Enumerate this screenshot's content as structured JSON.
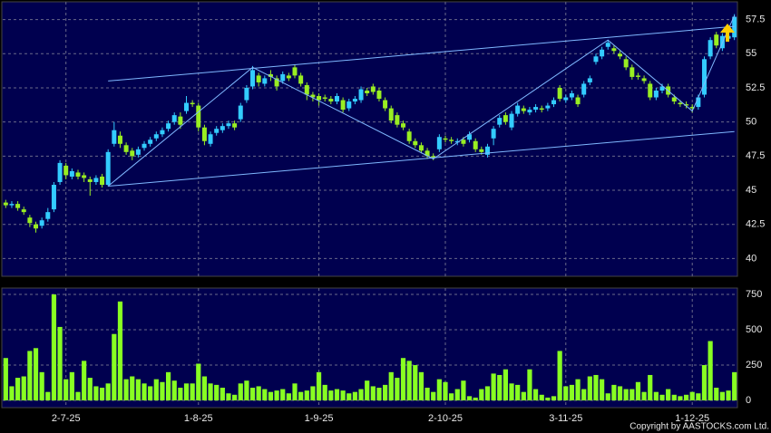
{
  "chart_data": {
    "type": "candlestick",
    "categories": [
      null,
      null,
      null,
      null,
      null,
      null,
      null,
      null,
      null,
      null,
      "2-7-25",
      null,
      null,
      null,
      null,
      null,
      null,
      null,
      null,
      null,
      null,
      null,
      null,
      null,
      null,
      null,
      null,
      null,
      null,
      null,
      null,
      null,
      "1-8-25",
      null,
      null,
      null,
      null,
      null,
      null,
      null,
      null,
      null,
      null,
      null,
      null,
      null,
      null,
      null,
      null,
      null,
      null,
      null,
      "1-9-25",
      null,
      null,
      null,
      null,
      null,
      null,
      null,
      null,
      null,
      null,
      null,
      null,
      null,
      null,
      null,
      null,
      null,
      null,
      null,
      null,
      "2-10-25",
      null,
      null,
      null,
      null,
      null,
      null,
      null,
      null,
      null,
      null,
      null,
      null,
      null,
      null,
      null,
      null,
      null,
      null,
      null,
      "3-11-25",
      null,
      null,
      null,
      null,
      null,
      null,
      null,
      null,
      null,
      null,
      null,
      null,
      null,
      null,
      null,
      null,
      null,
      null,
      null,
      null,
      "1-12-25",
      null,
      null,
      null,
      null,
      null,
      null,
      null
    ],
    "open": [
      44.1,
      43.9,
      44.0,
      43.6,
      43.0,
      42.5,
      42.4,
      42.9,
      43.6,
      45.6,
      46.8,
      46.0,
      46.3,
      46.1,
      45.8,
      45.6,
      46.0,
      45.4,
      48.4,
      49.0,
      48.3,
      47.9,
      47.6,
      48.1,
      48.4,
      48.8,
      49.1,
      49.5,
      50.0,
      50.4,
      50.8,
      51.4,
      51.2,
      49.6,
      48.4,
      49.2,
      49.4,
      49.7,
      49.9,
      50.2,
      51.6,
      52.6,
      53.4,
      52.8,
      53.5,
      53.2,
      53.0,
      53.4,
      54.0,
      53.4,
      52.7,
      52.0,
      51.9,
      51.8,
      51.7,
      51.5,
      51.6,
      51.0,
      51.5,
      51.6,
      52.3,
      52.6,
      52.3,
      51.6,
      51.0,
      50.5,
      49.9,
      49.3,
      48.6,
      48.3,
      47.9,
      47.5,
      48.0,
      48.8,
      48.7,
      48.5,
      48.7,
      48.7,
      48.6,
      48.0,
      47.6,
      48.8,
      49.8,
      50.5,
      49.6,
      50.6,
      51.0,
      50.7,
      50.9,
      51.0,
      51.0,
      51.3,
      52.5,
      51.6,
      51.8,
      51.8,
      52.0,
      52.9,
      54.4,
      54.8,
      55.5,
      55.4,
      55.0,
      54.6,
      54.0,
      53.4,
      53.2,
      52.8,
      51.8,
      52.3,
      52.6,
      51.8,
      51.4,
      51.3,
      51.1,
      51.1,
      52.0,
      54.8,
      56.4,
      55.4,
      56.1,
      56.2
    ],
    "high": [
      44.3,
      44.2,
      44.2,
      43.8,
      43.2,
      42.7,
      43.0,
      43.7,
      45.6,
      47.2,
      47.0,
      46.6,
      46.5,
      46.3,
      46.0,
      46.1,
      46.2,
      48.0,
      50.0,
      49.3,
      48.5,
      48.1,
      48.2,
      48.6,
      48.9,
      49.3,
      49.6,
      50.1,
      50.7,
      50.7,
      51.9,
      51.6,
      51.4,
      49.8,
      49.3,
      49.7,
      49.9,
      50.1,
      50.1,
      51.4,
      52.7,
      54.1,
      53.6,
      53.4,
      53.8,
      53.4,
      53.7,
      53.6,
      54.2,
      53.6,
      52.9,
      52.2,
      52.1,
      52.0,
      51.9,
      52.1,
      51.8,
      51.7,
      51.9,
      52.6,
      52.5,
      52.8,
      52.5,
      51.8,
      51.2,
      50.7,
      50.1,
      49.5,
      48.8,
      48.5,
      48.1,
      47.7,
      49.1,
      49.0,
      48.9,
      48.8,
      48.9,
      49.3,
      48.8,
      48.2,
      48.4,
      49.7,
      50.5,
      50.7,
      50.8,
      51.4,
      51.2,
      51.1,
      51.3,
      51.2,
      51.4,
      51.8,
      52.7,
      52.0,
      52.3,
      52.0,
      53.0,
      53.4,
      55.0,
      55.5,
      56.0,
      55.6,
      55.2,
      54.8,
      54.2,
      53.6,
      53.4,
      53.0,
      52.5,
      52.8,
      52.8,
      52.0,
      51.6,
      51.5,
      51.3,
      52.0,
      54.8,
      56.2,
      56.6,
      56.5,
      56.5,
      57.9
    ],
    "low": [
      43.7,
      43.7,
      43.5,
      43.2,
      42.3,
      41.9,
      42.2,
      42.7,
      43.4,
      45.4,
      45.8,
      45.8,
      45.8,
      45.6,
      44.6,
      45.4,
      45.2,
      45.3,
      48.2,
      48.1,
      47.6,
      47.2,
      47.4,
      47.9,
      48.2,
      48.6,
      48.9,
      49.3,
      49.8,
      49.5,
      50.6,
      51.1,
      49.3,
      48.3,
      48.2,
      49.0,
      49.2,
      49.5,
      49.4,
      50.0,
      51.4,
      52.4,
      52.6,
      52.6,
      53.0,
      52.3,
      52.8,
      53.0,
      53.2,
      52.6,
      51.6,
      51.5,
      51.2,
      51.5,
      51.3,
      51.3,
      50.7,
      50.8,
      51.3,
      51.4,
      51.9,
      52.0,
      51.5,
      50.8,
      49.9,
      49.6,
      49.4,
      48.4,
      48.1,
      47.7,
      47.3,
      47.2,
      47.8,
      48.5,
      48.4,
      48.3,
      48.2,
      48.5,
      47.8,
      47.6,
      47.4,
      48.3,
      49.6,
      49.8,
      49.4,
      50.4,
      50.6,
      50.5,
      50.7,
      50.7,
      50.8,
      51.1,
      51.5,
      51.4,
      51.6,
      51.1,
      51.8,
      52.7,
      54.2,
      54.6,
      55.3,
      55.0,
      54.6,
      53.8,
      53.1,
      53.1,
      52.8,
      51.6,
      51.6,
      52.1,
      51.8,
      51.3,
      51.1,
      51.0,
      50.7,
      50.9,
      51.8,
      54.6,
      55.4,
      55.2,
      55.9,
      56.0
    ],
    "close": [
      43.9,
      44.0,
      43.7,
      43.4,
      42.6,
      42.2,
      42.8,
      43.4,
      45.4,
      47.0,
      46.1,
      46.4,
      46.0,
      45.9,
      45.6,
      45.9,
      45.4,
      47.8,
      49.4,
      48.4,
      47.8,
      47.5,
      48.0,
      48.4,
      48.7,
      49.1,
      49.4,
      49.9,
      50.5,
      49.8,
      51.4,
      51.3,
      49.6,
      48.6,
      49.1,
      49.5,
      49.7,
      49.9,
      49.6,
      51.2,
      52.5,
      53.8,
      52.9,
      53.2,
      53.3,
      52.6,
      53.5,
      53.2,
      53.4,
      52.8,
      52.0,
      51.8,
      51.6,
      51.7,
      51.5,
      51.9,
      50.9,
      51.5,
      51.7,
      52.4,
      52.1,
      52.2,
      51.7,
      51.0,
      50.1,
      49.8,
      49.6,
      48.6,
      48.3,
      47.9,
      47.5,
      47.4,
      48.9,
      48.7,
      48.6,
      48.6,
      48.4,
      49.1,
      48.0,
      47.8,
      48.2,
      49.5,
      50.3,
      50.0,
      50.6,
      51.2,
      50.8,
      50.9,
      51.1,
      50.9,
      51.2,
      51.6,
      51.7,
      51.8,
      52.1,
      51.3,
      52.8,
      53.2,
      54.8,
      55.3,
      55.8,
      55.2,
      54.8,
      54.0,
      53.3,
      53.3,
      53.0,
      51.8,
      52.3,
      52.6,
      52.0,
      51.5,
      51.3,
      51.2,
      51.0,
      51.8,
      54.6,
      56.0,
      55.6,
      56.3,
      56.3,
      57.7
    ],
    "volume": [
      300,
      100,
      160,
      170,
      350,
      370,
      200,
      60,
      750,
      520,
      150,
      200,
      60,
      280,
      160,
      100,
      90,
      120,
      470,
      700,
      150,
      170,
      150,
      120,
      100,
      150,
      130,
      200,
      140,
      90,
      120,
      120,
      260,
      170,
      120,
      110,
      90,
      50,
      40,
      120,
      140,
      90,
      100,
      80,
      60,
      70,
      80,
      50,
      120,
      60,
      70,
      100,
      200,
      110,
      70,
      80,
      70,
      50,
      60,
      80,
      140,
      100,
      90,
      110,
      200,
      160,
      300,
      280,
      250,
      200,
      90,
      60,
      150,
      130,
      50,
      80,
      140,
      30,
      20,
      80,
      100,
      190,
      180,
      220,
      120,
      110,
      60,
      220,
      80,
      40,
      20,
      30,
      350,
      100,
      110,
      150,
      80,
      170,
      180,
      150,
      50,
      110,
      100,
      80,
      80,
      130,
      60,
      180,
      60,
      40,
      80,
      40,
      30,
      40,
      60,
      50,
      250,
      420,
      90,
      60,
      70,
      200
    ],
    "up_color": "#33ccff",
    "down_color": "#99ee22",
    "volume_color": "#88ff22",
    "ylim": [
      38.7,
      58.8
    ],
    "yticks": [
      40,
      42.5,
      45,
      47.5,
      50,
      52.5,
      55,
      57.5
    ],
    "volume_ylim": [
      -51,
      795
    ],
    "volume_ticks": [
      0,
      250,
      500,
      750
    ],
    "grid": true,
    "trendlines": [
      {
        "x": [
          17,
          41,
          71,
          100,
          114,
          121
        ],
        "y": [
          45.3,
          54.0,
          47.3,
          56.0,
          50.8,
          57.8
        ]
      },
      {
        "x": [
          17,
          121
        ],
        "y": [
          53.0,
          57.0
        ]
      },
      {
        "x": [
          17,
          121
        ],
        "y": [
          45.3,
          49.3
        ]
      }
    ],
    "trendline_color": "#7fb8ff",
    "copyright": "Copyright by AASTOCKS.com Ltd."
  }
}
